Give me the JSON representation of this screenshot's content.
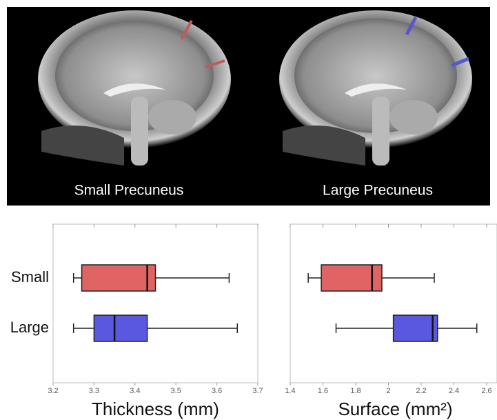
{
  "images": [
    {
      "caption": "Small Precuneus"
    },
    {
      "caption": "Large Precuneus"
    }
  ],
  "chart_data": [
    {
      "type": "box",
      "xlabel": "Thickness (mm)",
      "categories": [
        "Small",
        "Large"
      ],
      "colors": [
        "#e06464",
        "#5a57e0"
      ],
      "min": [
        3.25,
        3.25
      ],
      "q1": [
        3.27,
        3.3
      ],
      "median": [
        3.43,
        3.35
      ],
      "q3": [
        3.45,
        3.43
      ],
      "max": [
        3.63,
        3.65
      ],
      "xlim": [
        3.2,
        3.7
      ],
      "xticks": [
        3.2,
        3.3,
        3.4,
        3.5,
        3.6,
        3.7
      ]
    },
    {
      "type": "box",
      "xlabel": "Surface (mm²)",
      "categories": [
        "Small",
        "Large"
      ],
      "colors": [
        "#e06464",
        "#5a57e0"
      ],
      "min": [
        1.51,
        1.68
      ],
      "q1": [
        1.59,
        2.03
      ],
      "median": [
        1.9,
        2.27
      ],
      "q3": [
        1.96,
        2.3
      ],
      "max": [
        2.28,
        2.54
      ],
      "xlim": [
        1.4,
        2.6
      ],
      "xticks": [
        1.4,
        1.6,
        1.8,
        2.0,
        2.2,
        2.4,
        2.6
      ]
    }
  ]
}
